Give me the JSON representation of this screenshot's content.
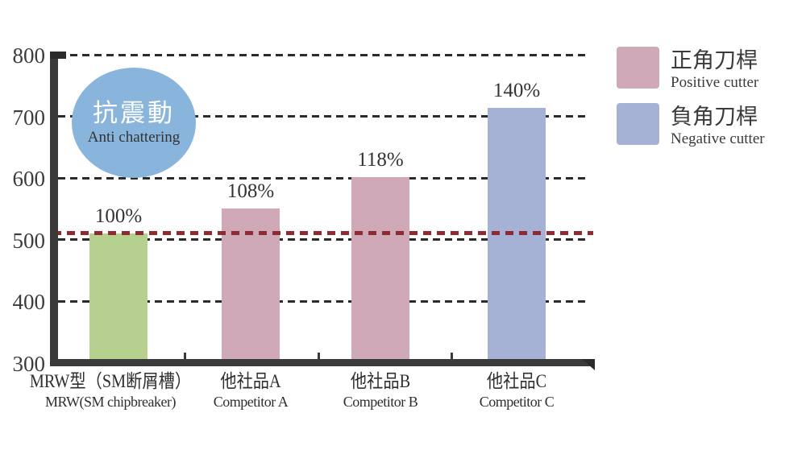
{
  "chart_data": {
    "type": "bar",
    "title": "",
    "categories": [
      {
        "name_cjk": "MRW型（SM断屑槽）",
        "name_en": "MRW(SM chipbreaker)"
      },
      {
        "name_cjk": "他社品A",
        "name_en": "Competitor A"
      },
      {
        "name_cjk": "他社品B",
        "name_en": "Competitor B"
      },
      {
        "name_cjk": "他社品C",
        "name_en": "Competitor C"
      }
    ],
    "values_percent": [
      100,
      108,
      118,
      140
    ],
    "value_labels": [
      "100%",
      "108%",
      "118%",
      "140%"
    ],
    "bar_colors": [
      "#b6d08f",
      "#cfa9b8",
      "#cfa9b8",
      "#a6b1d6"
    ],
    "y_axis": {
      "ticks": [
        "800",
        "700",
        "600",
        "500",
        "400",
        "300"
      ],
      "min": 300,
      "max": 800
    },
    "baseline": {
      "value": 510,
      "color": "#8e2b31",
      "style": "dashed"
    },
    "grid": {
      "horizontal": true,
      "style": "dashed",
      "color": "#2b2b2b"
    },
    "legend_position": "right"
  },
  "annotation_badge": {
    "title_cjk": "抗震動",
    "subtitle_en": "Anti chattering",
    "fill": "#89b5dc"
  },
  "legend": {
    "items": [
      {
        "label_cjk": "正角刀桿",
        "label_en": "Positive cutter",
        "swatch": "#cfa9b8"
      },
      {
        "label_cjk": "負角刀桿",
        "label_en": "Negative cutter",
        "swatch": "#a6b1d6"
      }
    ]
  }
}
